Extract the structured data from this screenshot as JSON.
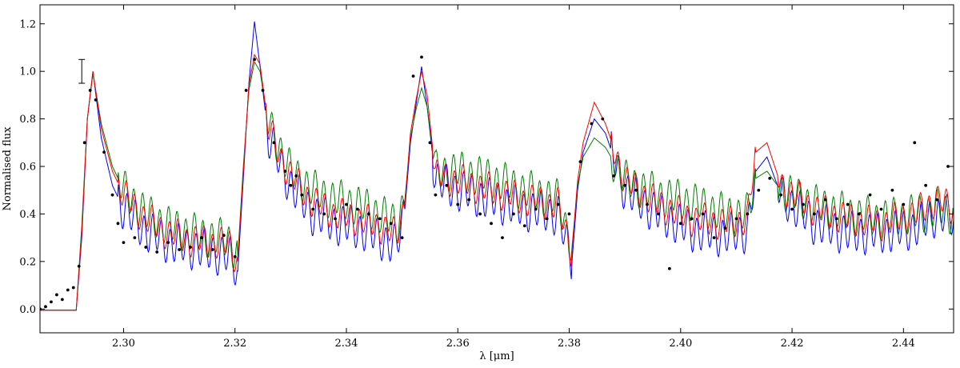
{
  "chart_data": {
    "type": "line",
    "title": "",
    "xlabel": "λ [μm]",
    "ylabel": "Normalised flux",
    "xlim": [
      2.285,
      2.449
    ],
    "ylim": [
      -0.1,
      1.28
    ],
    "xticks": [
      "2.30",
      "2.32",
      "2.34",
      "2.36",
      "2.38",
      "2.40",
      "2.42",
      "2.44"
    ],
    "xtick_values": [
      2.3,
      2.32,
      2.34,
      2.36,
      2.38,
      2.4,
      2.42,
      2.44
    ],
    "yticks": [
      "0.0",
      "0.2",
      "0.4",
      "0.6",
      "0.8",
      "1.0",
      "1.2"
    ],
    "ytick_values": [
      0.0,
      0.2,
      0.4,
      0.6,
      0.8,
      1.0,
      1.2
    ],
    "grid": false,
    "error_bar": {
      "x": 2.2925,
      "y": 1.0,
      "half_height": 0.05
    },
    "series": [
      {
        "color": "#0000ff",
        "kind": "line",
        "variant": "blue",
        "points": [
          [
            2.285,
            -0.005
          ],
          [
            2.2915,
            -0.005
          ],
          [
            2.2925,
            0.3
          ],
          [
            2.2935,
            0.8
          ],
          [
            2.2945,
            1.0
          ],
          [
            2.296,
            0.72
          ],
          [
            2.298,
            0.52
          ],
          [
            2.3,
            0.42
          ],
          [
            2.304,
            0.33
          ],
          [
            2.308,
            0.28
          ],
          [
            2.312,
            0.26
          ],
          [
            2.316,
            0.24
          ],
          [
            2.319,
            0.22
          ],
          [
            2.3205,
            0.16
          ],
          [
            2.3215,
            0.55
          ],
          [
            2.3225,
            0.95
          ],
          [
            2.3235,
            1.21
          ],
          [
            2.3245,
            1.02
          ],
          [
            2.326,
            0.72
          ],
          [
            2.328,
            0.62
          ],
          [
            2.33,
            0.52
          ],
          [
            2.334,
            0.4
          ],
          [
            2.338,
            0.36
          ],
          [
            2.342,
            0.34
          ],
          [
            2.346,
            0.3
          ],
          [
            2.349,
            0.26
          ],
          [
            2.3505,
            0.42
          ],
          [
            2.3515,
            0.7
          ],
          [
            2.3525,
            0.86
          ],
          [
            2.3535,
            1.02
          ],
          [
            2.3545,
            0.85
          ],
          [
            2.356,
            0.54
          ],
          [
            2.36,
            0.5
          ],
          [
            2.366,
            0.46
          ],
          [
            2.372,
            0.42
          ],
          [
            2.378,
            0.4
          ],
          [
            2.3805,
            0.2
          ],
          [
            2.3815,
            0.5
          ],
          [
            2.3825,
            0.66
          ],
          [
            2.3845,
            0.8
          ],
          [
            2.3865,
            0.74
          ],
          [
            2.39,
            0.5
          ],
          [
            2.396,
            0.4
          ],
          [
            2.402,
            0.33
          ],
          [
            2.408,
            0.31
          ],
          [
            2.412,
            0.33
          ],
          [
            2.4135,
            0.58
          ],
          [
            2.4155,
            0.64
          ],
          [
            2.418,
            0.48
          ],
          [
            2.424,
            0.36
          ],
          [
            2.43,
            0.32
          ],
          [
            2.436,
            0.32
          ],
          [
            2.442,
            0.34
          ],
          [
            2.446,
            0.4
          ],
          [
            2.449,
            0.38
          ]
        ]
      },
      {
        "color": "#008000",
        "kind": "line",
        "variant": "green",
        "points": [
          [
            2.285,
            -0.005
          ],
          [
            2.2915,
            -0.005
          ],
          [
            2.2925,
            0.35
          ],
          [
            2.2935,
            0.8
          ],
          [
            2.2945,
            0.99
          ],
          [
            2.296,
            0.78
          ],
          [
            2.298,
            0.6
          ],
          [
            2.3,
            0.5
          ],
          [
            2.304,
            0.4
          ],
          [
            2.308,
            0.35
          ],
          [
            2.312,
            0.32
          ],
          [
            2.316,
            0.3
          ],
          [
            2.319,
            0.29
          ],
          [
            2.3205,
            0.22
          ],
          [
            2.3215,
            0.6
          ],
          [
            2.3225,
            0.92
          ],
          [
            2.3235,
            1.04
          ],
          [
            2.3245,
            1.0
          ],
          [
            2.326,
            0.78
          ],
          [
            2.328,
            0.68
          ],
          [
            2.33,
            0.58
          ],
          [
            2.334,
            0.5
          ],
          [
            2.338,
            0.46
          ],
          [
            2.342,
            0.44
          ],
          [
            2.346,
            0.4
          ],
          [
            2.349,
            0.36
          ],
          [
            2.3505,
            0.46
          ],
          [
            2.3515,
            0.72
          ],
          [
            2.3525,
            0.84
          ],
          [
            2.3535,
            0.93
          ],
          [
            2.3545,
            0.85
          ],
          [
            2.356,
            0.58
          ],
          [
            2.36,
            0.58
          ],
          [
            2.366,
            0.55
          ],
          [
            2.372,
            0.5
          ],
          [
            2.378,
            0.46
          ],
          [
            2.3805,
            0.26
          ],
          [
            2.3815,
            0.52
          ],
          [
            2.3825,
            0.64
          ],
          [
            2.3845,
            0.72
          ],
          [
            2.3865,
            0.68
          ],
          [
            2.39,
            0.54
          ],
          [
            2.396,
            0.48
          ],
          [
            2.402,
            0.45
          ],
          [
            2.408,
            0.4
          ],
          [
            2.412,
            0.4
          ],
          [
            2.4135,
            0.55
          ],
          [
            2.4155,
            0.58
          ],
          [
            2.418,
            0.5
          ],
          [
            2.424,
            0.44
          ],
          [
            2.43,
            0.4
          ],
          [
            2.436,
            0.38
          ],
          [
            2.442,
            0.4
          ],
          [
            2.446,
            0.42
          ],
          [
            2.449,
            0.4
          ]
        ]
      },
      {
        "color": "#ff0000",
        "kind": "line",
        "variant": "red",
        "points": [
          [
            2.285,
            -0.005
          ],
          [
            2.2915,
            -0.005
          ],
          [
            2.2925,
            0.32
          ],
          [
            2.2935,
            0.8
          ],
          [
            2.2945,
            1.0
          ],
          [
            2.296,
            0.76
          ],
          [
            2.298,
            0.58
          ],
          [
            2.3,
            0.48
          ],
          [
            2.304,
            0.38
          ],
          [
            2.308,
            0.32
          ],
          [
            2.312,
            0.29
          ],
          [
            2.316,
            0.28
          ],
          [
            2.319,
            0.27
          ],
          [
            2.3205,
            0.2
          ],
          [
            2.3215,
            0.58
          ],
          [
            2.3225,
            0.94
          ],
          [
            2.3235,
            1.07
          ],
          [
            2.3245,
            1.03
          ],
          [
            2.326,
            0.76
          ],
          [
            2.328,
            0.65
          ],
          [
            2.33,
            0.56
          ],
          [
            2.334,
            0.45
          ],
          [
            2.338,
            0.4
          ],
          [
            2.342,
            0.38
          ],
          [
            2.346,
            0.35
          ],
          [
            2.349,
            0.31
          ],
          [
            2.3505,
            0.44
          ],
          [
            2.3515,
            0.74
          ],
          [
            2.3525,
            0.88
          ],
          [
            2.3535,
            1.0
          ],
          [
            2.3545,
            0.9
          ],
          [
            2.356,
            0.56
          ],
          [
            2.36,
            0.54
          ],
          [
            2.366,
            0.5
          ],
          [
            2.372,
            0.46
          ],
          [
            2.378,
            0.44
          ],
          [
            2.3805,
            0.24
          ],
          [
            2.3815,
            0.54
          ],
          [
            2.3825,
            0.7
          ],
          [
            2.3845,
            0.87
          ],
          [
            2.3865,
            0.78
          ],
          [
            2.39,
            0.54
          ],
          [
            2.396,
            0.44
          ],
          [
            2.402,
            0.38
          ],
          [
            2.408,
            0.36
          ],
          [
            2.412,
            0.38
          ],
          [
            2.4135,
            0.66
          ],
          [
            2.4155,
            0.7
          ],
          [
            2.418,
            0.52
          ],
          [
            2.424,
            0.42
          ],
          [
            2.43,
            0.38
          ],
          [
            2.436,
            0.36
          ],
          [
            2.442,
            0.4
          ],
          [
            2.446,
            0.46
          ],
          [
            2.449,
            0.42
          ]
        ]
      },
      {
        "color": "#000000",
        "kind": "scatter",
        "variant": "observed",
        "points": [
          [
            2.285,
            0.0
          ],
          [
            2.286,
            0.01
          ],
          [
            2.287,
            0.03
          ],
          [
            2.288,
            0.06
          ],
          [
            2.289,
            0.04
          ],
          [
            2.29,
            0.08
          ],
          [
            2.291,
            0.09
          ],
          [
            2.292,
            0.18
          ],
          [
            2.293,
            0.7
          ],
          [
            2.294,
            0.92
          ],
          [
            2.295,
            0.88
          ],
          [
            2.2965,
            0.66
          ],
          [
            2.298,
            0.48
          ],
          [
            2.299,
            0.36
          ],
          [
            2.3,
            0.28
          ],
          [
            2.302,
            0.3
          ],
          [
            2.304,
            0.26
          ],
          [
            2.306,
            0.24
          ],
          [
            2.308,
            0.28
          ],
          [
            2.31,
            0.25
          ],
          [
            2.312,
            0.26
          ],
          [
            2.314,
            0.3
          ],
          [
            2.316,
            0.25
          ],
          [
            2.318,
            0.31
          ],
          [
            2.32,
            0.22
          ],
          [
            2.322,
            0.92
          ],
          [
            2.3235,
            1.05
          ],
          [
            2.325,
            0.92
          ],
          [
            2.327,
            0.7
          ],
          [
            2.329,
            0.58
          ],
          [
            2.33,
            0.52
          ],
          [
            2.331,
            0.56
          ],
          [
            2.332,
            0.48
          ],
          [
            2.334,
            0.42
          ],
          [
            2.336,
            0.4
          ],
          [
            2.338,
            0.38
          ],
          [
            2.34,
            0.44
          ],
          [
            2.342,
            0.42
          ],
          [
            2.344,
            0.4
          ],
          [
            2.346,
            0.38
          ],
          [
            2.348,
            0.36
          ],
          [
            2.35,
            0.3
          ],
          [
            2.352,
            0.98
          ],
          [
            2.3535,
            1.06
          ],
          [
            2.355,
            0.7
          ],
          [
            2.356,
            0.48
          ],
          [
            2.358,
            0.52
          ],
          [
            2.36,
            0.44
          ],
          [
            2.362,
            0.46
          ],
          [
            2.364,
            0.4
          ],
          [
            2.366,
            0.36
          ],
          [
            2.368,
            0.3
          ],
          [
            2.37,
            0.4
          ],
          [
            2.372,
            0.35
          ],
          [
            2.374,
            0.42
          ],
          [
            2.376,
            0.38
          ],
          [
            2.378,
            0.44
          ],
          [
            2.38,
            0.4
          ],
          [
            2.382,
            0.62
          ],
          [
            2.384,
            0.78
          ],
          [
            2.386,
            0.8
          ],
          [
            2.388,
            0.56
          ],
          [
            2.39,
            0.52
          ],
          [
            2.392,
            0.5
          ],
          [
            2.394,
            0.44
          ],
          [
            2.396,
            0.4
          ],
          [
            2.398,
            0.17
          ],
          [
            2.4,
            0.36
          ],
          [
            2.402,
            0.38
          ],
          [
            2.404,
            0.4
          ],
          [
            2.406,
            0.3
          ],
          [
            2.408,
            0.34
          ],
          [
            2.41,
            0.38
          ],
          [
            2.412,
            0.4
          ],
          [
            2.414,
            0.5
          ],
          [
            2.416,
            0.55
          ],
          [
            2.418,
            0.48
          ],
          [
            2.42,
            0.42
          ],
          [
            2.422,
            0.44
          ],
          [
            2.424,
            0.4
          ],
          [
            2.426,
            0.46
          ],
          [
            2.428,
            0.38
          ],
          [
            2.43,
            0.44
          ],
          [
            2.432,
            0.4
          ],
          [
            2.434,
            0.48
          ],
          [
            2.436,
            0.42
          ],
          [
            2.438,
            0.5
          ],
          [
            2.44,
            0.44
          ],
          [
            2.442,
            0.7
          ],
          [
            2.444,
            0.52
          ],
          [
            2.446,
            0.46
          ],
          [
            2.448,
            0.6
          ]
        ]
      }
    ]
  }
}
